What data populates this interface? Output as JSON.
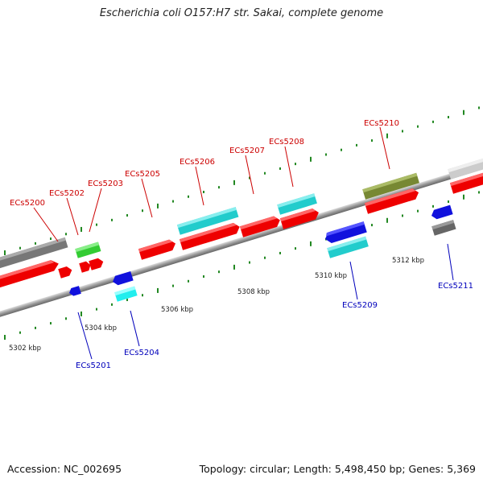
{
  "title": "Escherichia coli O157:H7 str. Sakai, complete genome",
  "accession": "Accession: NC_002695",
  "summary": "Topology: circular; Length: 5,498,450 bp; Genes: 5,369",
  "colors": {
    "cds_forward": "#ee1111",
    "cds_reverse": "#1111dd",
    "cog_gray": "#777777",
    "cog_green": "#33cc33",
    "cog_cyan": "#22cccc",
    "cog_olive": "#778833",
    "cog_light": "#cccccc",
    "backbone": "#999999",
    "ticks": "#228822"
  },
  "kbp_labels": [
    "5302 kbp",
    "5304 kbp",
    "5306 kbp",
    "5308 kbp",
    "5310 kbp",
    "5312 kbp"
  ],
  "genes": [
    {
      "id": "ECs5200",
      "strand": "forward"
    },
    {
      "id": "ECs5201",
      "strand": "reverse"
    },
    {
      "id": "ECs5202",
      "strand": "forward"
    },
    {
      "id": "ECs5203",
      "strand": "forward"
    },
    {
      "id": "ECs5204",
      "strand": "reverse"
    },
    {
      "id": "ECs5205",
      "strand": "forward"
    },
    {
      "id": "ECs5206",
      "strand": "forward"
    },
    {
      "id": "ECs5207",
      "strand": "forward"
    },
    {
      "id": "ECs5208",
      "strand": "forward"
    },
    {
      "id": "ECs5209",
      "strand": "reverse"
    },
    {
      "id": "ECs5210",
      "strand": "forward"
    },
    {
      "id": "ECs5211",
      "strand": "reverse"
    }
  ]
}
